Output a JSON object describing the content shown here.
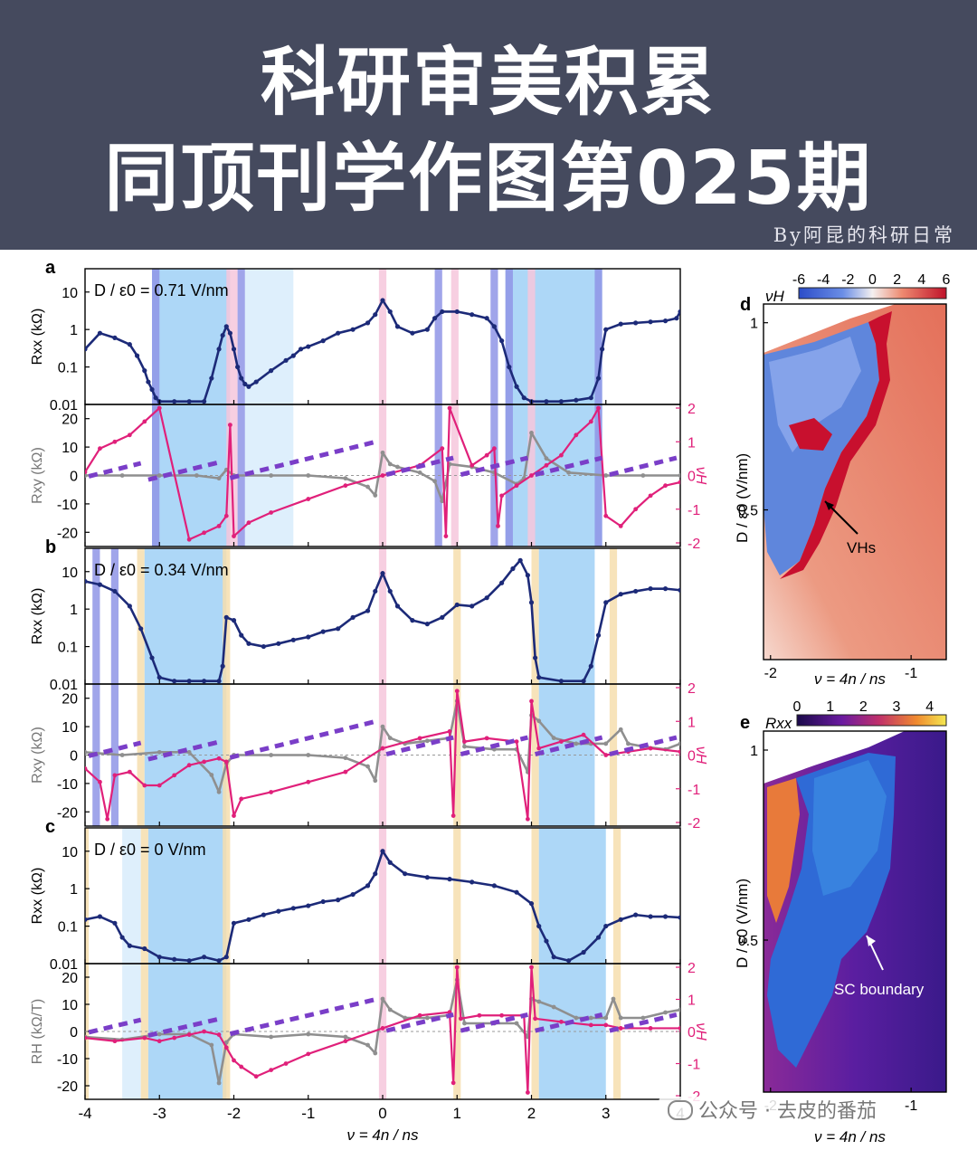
{
  "banner": {
    "title_line1": "科研审美积累",
    "title_line2": "同顶刊学作图第025期",
    "byline": "By阿昆的科研日常"
  },
  "watermark": {
    "text": "公众号 · 去皮的番茄",
    "icon": "wechat-icon"
  },
  "colors": {
    "banner_bg": "#454a5e",
    "rxx_series": "#1c2a78",
    "rxy_series": "#8f8f8f",
    "nuH_series": "#e0207a",
    "fit_dashes": "#7a3ec8",
    "shade_sc": "#9fd0f6",
    "shade_light": "#d8ecfb",
    "shade_violet": "#8f95e6",
    "shade_pink": "#f6c7dc",
    "shade_yellow": "#f6deae"
  },
  "chart_data": [
    {
      "panel": "a",
      "type": "line",
      "annotation": "D / ε0 = 0.71 V/nm",
      "xlabel": "ν = 4n / ns",
      "xlim": [
        -4,
        4
      ],
      "top": {
        "ylabel": "Rxx (kΩ)",
        "yscale": "log",
        "ylim": [
          0.01,
          30
        ],
        "yticks": [
          "10",
          "1",
          "0.1",
          "0.01"
        ],
        "series": [
          {
            "x": [
              -4,
              -3.8,
              -3.6,
              -3.4,
              -3.3,
              -3.2,
              -3.15,
              -3.1,
              -3.05,
              -3.0,
              -2.8,
              -2.6,
              -2.4,
              -2.3,
              -2.2,
              -2.15,
              -2.1,
              -2.05,
              -2.0,
              -1.95,
              -1.9,
              -1.85,
              -1.8,
              -1.7,
              -1.5,
              -1.3,
              -1.2,
              -1.1,
              -1.0,
              -0.8,
              -0.6,
              -0.4,
              -0.2,
              -0.1,
              0,
              0.1,
              0.2,
              0.4,
              0.6,
              0.7,
              0.8,
              1.0,
              1.2,
              1.4,
              1.5,
              1.6,
              1.7,
              1.8,
              1.9,
              2.0,
              2.2,
              2.4,
              2.6,
              2.8,
              2.9,
              2.95,
              3.0,
              3.2,
              3.4,
              3.6,
              3.8,
              3.95,
              4
            ],
            "y": [
              0.3,
              0.8,
              0.6,
              0.4,
              0.2,
              0.08,
              0.04,
              0.025,
              0.015,
              0.012,
              0.012,
              0.012,
              0.012,
              0.05,
              0.3,
              0.7,
              1.2,
              0.8,
              0.3,
              0.1,
              0.05,
              0.035,
              0.03,
              0.04,
              0.08,
              0.15,
              0.2,
              0.3,
              0.35,
              0.5,
              0.8,
              1.0,
              1.5,
              2.5,
              6.0,
              3.0,
              1.2,
              0.8,
              1.0,
              2.0,
              3.0,
              3.0,
              2.5,
              2.0,
              1.2,
              0.5,
              0.1,
              0.03,
              0.015,
              0.012,
              0.012,
              0.012,
              0.013,
              0.015,
              0.05,
              0.3,
              1.0,
              1.4,
              1.5,
              1.6,
              1.7,
              2.0,
              3.0
            ]
          }
        ]
      },
      "bottom": {
        "ylabel_left": "Rxy (kΩ)",
        "ylim_left": [
          -25,
          25
        ],
        "yticks_left": [
          "20",
          "10",
          "0",
          "-10",
          "-20"
        ],
        "ylabel_right": "νH",
        "ylim_right": [
          -2,
          2
        ],
        "yticks_right": [
          "2",
          "1",
          "0",
          "-1",
          "-2"
        ],
        "series": [
          {
            "name": "Rxy",
            "x": [
              -4,
              -3.5,
              -3.0,
              -2.5,
              -2.2,
              -2.1,
              -2.0,
              -1.5,
              -1.0,
              -0.5,
              -0.2,
              -0.1,
              0,
              0.1,
              0.2,
              0.5,
              0.7,
              0.8,
              0.9,
              1.2,
              1.5,
              1.8,
              1.9,
              2.0,
              2.2,
              2.5,
              3.0,
              3.5,
              4
            ],
            "y": [
              0,
              0,
              0,
              0,
              -1,
              2,
              0,
              0,
              0,
              -1,
              -4,
              -7,
              8,
              4,
              3,
              1,
              -2,
              -9,
              4,
              3,
              1,
              -3,
              -1,
              15,
              6,
              1,
              0,
              0,
              0
            ]
          },
          {
            "name": "νH",
            "x": [
              -4,
              -3.8,
              -3.6,
              -3.4,
              -3.2,
              -3.0,
              -2.6,
              -2.4,
              -2.2,
              -2.1,
              -2.05,
              -2.0,
              -1.8,
              -1.5,
              -1.0,
              -0.5,
              0,
              0.5,
              0.8,
              0.85,
              0.9,
              1.2,
              1.4,
              1.5,
              1.55,
              1.6,
              1.8,
              2.0,
              2.2,
              2.4,
              2.6,
              2.8,
              2.9,
              3.0,
              3.2,
              3.4,
              3.6,
              3.8,
              4
            ],
            "y": [
              0.1,
              0.8,
              1.0,
              1.2,
              1.6,
              2.0,
              -1.9,
              -1.7,
              -1.5,
              -1.2,
              1.5,
              -1.8,
              -1.4,
              -1.1,
              -0.7,
              -0.3,
              0.0,
              0.3,
              0.8,
              -1.8,
              2.0,
              0.3,
              0.6,
              0.8,
              -1.5,
              -0.6,
              -0.3,
              0.0,
              0.3,
              0.6,
              1.2,
              1.6,
              2.0,
              -1.2,
              -1.5,
              -1.0,
              -0.6,
              -0.3,
              -0.2
            ]
          }
        ]
      }
    },
    {
      "panel": "b",
      "type": "line",
      "annotation": "D / ε0 = 0.34 V/nm",
      "xlabel": "ν = 4n / ns",
      "xlim": [
        -4,
        4
      ],
      "top": {
        "ylabel": "Rxx (kΩ)",
        "yscale": "log",
        "ylim": [
          0.01,
          30
        ],
        "yticks": [
          "10",
          "1",
          "0.1",
          "0.01"
        ],
        "series": [
          {
            "x": [
              -4,
              -3.8,
              -3.6,
              -3.4,
              -3.25,
              -3.1,
              -3.0,
              -2.8,
              -2.6,
              -2.4,
              -2.2,
              -2.15,
              -2.1,
              -2.0,
              -1.9,
              -1.8,
              -1.6,
              -1.4,
              -1.2,
              -1.0,
              -0.8,
              -0.6,
              -0.4,
              -0.2,
              -0.1,
              0,
              0.1,
              0.2,
              0.4,
              0.6,
              0.8,
              1.0,
              1.2,
              1.4,
              1.6,
              1.75,
              1.85,
              1.95,
              2.0,
              2.05,
              2.1,
              2.4,
              2.7,
              2.8,
              2.9,
              3.0,
              3.2,
              3.4,
              3.6,
              3.8,
              4
            ],
            "y": [
              5.5,
              4.5,
              3.0,
              1.2,
              0.3,
              0.05,
              0.015,
              0.012,
              0.012,
              0.012,
              0.012,
              0.03,
              0.6,
              0.5,
              0.2,
              0.12,
              0.1,
              0.12,
              0.15,
              0.18,
              0.25,
              0.3,
              0.6,
              0.9,
              3.0,
              9.0,
              3.0,
              1.2,
              0.5,
              0.4,
              0.6,
              1.3,
              1.2,
              2.0,
              5.0,
              12.0,
              20.0,
              8.0,
              1.5,
              0.05,
              0.015,
              0.012,
              0.012,
              0.03,
              0.2,
              1.5,
              2.5,
              3.0,
              3.5,
              3.5,
              3.2
            ]
          }
        ]
      },
      "bottom": {
        "ylabel_left": "Rxy (kΩ)",
        "ylim_left": [
          -25,
          25
        ],
        "yticks_left": [
          "20",
          "10",
          "0",
          "-10",
          "-20"
        ],
        "ylabel_right": "νH",
        "ylim_right": [
          -2,
          2
        ],
        "yticks_right": [
          "2",
          "1",
          "0",
          "-1",
          "-2"
        ],
        "series": [
          {
            "name": "Rxy",
            "x": [
              -4,
              -3.5,
              -3.0,
              -2.6,
              -2.3,
              -2.2,
              -2.1,
              -2.0,
              -1.5,
              -1.0,
              -0.5,
              -0.2,
              -0.1,
              0,
              0.1,
              0.3,
              0.6,
              0.9,
              1.0,
              1.1,
              1.5,
              1.8,
              1.95,
              2.0,
              2.1,
              2.3,
              2.6,
              2.8,
              3.0,
              3.2,
              3.3,
              3.5,
              3.8,
              4
            ],
            "y": [
              1,
              0,
              1,
              1,
              -7,
              -13,
              -3,
              0,
              0,
              0,
              -1,
              -4,
              -9,
              10,
              6,
              4,
              5,
              6,
              19,
              3,
              2,
              2,
              -6,
              14,
              12,
              6,
              4,
              4,
              4,
              9,
              4,
              3,
              2,
              4
            ]
          },
          {
            "name": "νH",
            "x": [
              -4,
              -3.8,
              -3.7,
              -3.6,
              -3.4,
              -3.2,
              -3.0,
              -2.8,
              -2.6,
              -2.4,
              -2.2,
              -2.1,
              -2.0,
              -1.9,
              -1.5,
              -1.0,
              -0.5,
              0,
              0.5,
              0.9,
              0.95,
              1.0,
              1.1,
              1.4,
              1.8,
              1.95,
              2.0,
              2.1,
              2.4,
              2.7,
              3.0,
              3.3,
              3.6,
              4
            ],
            "y": [
              -0.4,
              -0.8,
              -1.9,
              -0.6,
              -0.5,
              -0.9,
              -0.9,
              -0.6,
              -0.3,
              -0.2,
              -0.1,
              -0.2,
              -1.8,
              -1.3,
              -1.1,
              -0.8,
              -0.5,
              0.2,
              0.5,
              0.7,
              -1.8,
              1.9,
              0.4,
              0.5,
              0.4,
              -1.9,
              1.6,
              0.2,
              0.4,
              0.6,
              0.0,
              0.1,
              0.2,
              0.1
            ]
          }
        ]
      }
    },
    {
      "panel": "c",
      "type": "line",
      "annotation": "D / ε0 = 0 V/nm",
      "xlabel": "ν = 4n / ns",
      "xlim": [
        -4,
        4
      ],
      "top": {
        "ylabel": "Rxx (kΩ)",
        "yscale": "log",
        "ylim": [
          0.01,
          30
        ],
        "yticks": [
          "10",
          "1",
          "0.1",
          "0.01"
        ],
        "series": [
          {
            "x": [
              -4,
              -3.8,
              -3.6,
              -3.5,
              -3.4,
              -3.2,
              -3.0,
              -2.8,
              -2.6,
              -2.4,
              -2.2,
              -2.1,
              -2.0,
              -1.8,
              -1.6,
              -1.4,
              -1.2,
              -1.0,
              -0.8,
              -0.6,
              -0.4,
              -0.2,
              -0.1,
              0,
              0.1,
              0.3,
              0.6,
              0.9,
              1.2,
              1.5,
              1.8,
              2.0,
              2.1,
              2.2,
              2.3,
              2.5,
              2.7,
              2.9,
              3.0,
              3.2,
              3.4,
              3.6,
              3.8,
              4
            ],
            "y": [
              0.15,
              0.18,
              0.12,
              0.05,
              0.03,
              0.025,
              0.015,
              0.013,
              0.012,
              0.015,
              0.012,
              0.015,
              0.12,
              0.15,
              0.2,
              0.25,
              0.3,
              0.35,
              0.45,
              0.5,
              0.7,
              1.2,
              2.5,
              10.0,
              5.0,
              2.5,
              2.0,
              1.8,
              1.5,
              1.2,
              0.8,
              0.4,
              0.1,
              0.04,
              0.015,
              0.012,
              0.02,
              0.05,
              0.1,
              0.15,
              0.2,
              0.18,
              0.18,
              0.17
            ]
          }
        ]
      },
      "bottom": {
        "ylabel_left": "RH (kΩ/T)",
        "ylim_left": [
          -25,
          25
        ],
        "yticks_left": [
          "20",
          "10",
          "0",
          "-10",
          "-20"
        ],
        "ylabel_right": "νH",
        "ylim_right": [
          -2,
          2
        ],
        "yticks_right": [
          "2",
          "1",
          "0",
          "-1",
          "-2"
        ],
        "series": [
          {
            "name": "RH",
            "x": [
              -4,
              -3.5,
              -3.0,
              -2.6,
              -2.3,
              -2.2,
              -2.1,
              -2.0,
              -1.5,
              -1.0,
              -0.5,
              -0.2,
              -0.1,
              0,
              0.1,
              0.3,
              0.6,
              0.9,
              1.0,
              1.1,
              1.5,
              1.8,
              1.95,
              2.0,
              2.1,
              2.3,
              2.6,
              2.8,
              3.0,
              3.1,
              3.2,
              3.5,
              3.8,
              4
            ],
            "y": [
              -2,
              -3,
              -1,
              -1,
              -5,
              -19,
              -4,
              -1,
              -2,
              -1,
              -2,
              -5,
              -8,
              12,
              8,
              5,
              5,
              6,
              19,
              3,
              3,
              3,
              -2,
              12,
              11,
              9,
              5,
              5,
              5,
              12,
              5,
              5,
              7,
              8
            ]
          },
          {
            "name": "νH",
            "x": [
              -4,
              -3.6,
              -3.2,
              -3.0,
              -2.8,
              -2.6,
              -2.4,
              -2.2,
              -2.1,
              -2.0,
              -1.9,
              -1.7,
              -1.5,
              -1.3,
              -1.0,
              -0.5,
              0,
              0.5,
              0.9,
              0.95,
              1.0,
              1.05,
              1.3,
              1.6,
              1.9,
              1.95,
              2.0,
              2.05,
              2.4,
              2.8,
              3.0,
              3.2,
              3.6,
              4
            ],
            "y": [
              -0.2,
              -0.3,
              -0.2,
              -0.3,
              -0.2,
              -0.1,
              0.0,
              -0.1,
              -0.5,
              -0.9,
              -1.1,
              -1.4,
              -1.2,
              -1.0,
              -0.7,
              -0.3,
              0.1,
              0.5,
              0.6,
              -1.6,
              2.0,
              0.4,
              0.5,
              0.5,
              0.5,
              -1.9,
              2.0,
              0.4,
              0.3,
              0.2,
              0.2,
              0.1,
              0.1,
              0.1
            ]
          }
        ]
      }
    },
    {
      "panel": "d",
      "type": "heatmap",
      "colorbar_label": "νH",
      "colorbar_ticks": [
        "-6",
        "-4",
        "-2",
        "0",
        "2",
        "4",
        "6"
      ],
      "colorbar_range": [
        -6,
        6
      ],
      "xlabel": "ν = 4n / ns",
      "ylabel": "D / ε0 (V/nm)",
      "xlim": [
        -2.05,
        -0.75
      ],
      "ylim": [
        0.1,
        1.05
      ],
      "xticks": [
        "-2",
        "-1"
      ],
      "yticks": [
        "1",
        "0.5"
      ],
      "annotation": "VHs"
    },
    {
      "panel": "e",
      "type": "heatmap",
      "colorbar_label": "Rxx",
      "colorbar_ticks": [
        "0",
        "1",
        "2",
        "3",
        "4"
      ],
      "colorbar_range": [
        0,
        4.5
      ],
      "xlabel": "ν = 4n / ns",
      "ylabel": "D / ε0 (V/nm)",
      "xlim": [
        -2.05,
        -0.75
      ],
      "ylim": [
        0.1,
        1.05
      ],
      "xticks": [
        "-2",
        "-1"
      ],
      "yticks": [
        "1",
        "0.5"
      ],
      "annotation": "SC boundary"
    }
  ]
}
